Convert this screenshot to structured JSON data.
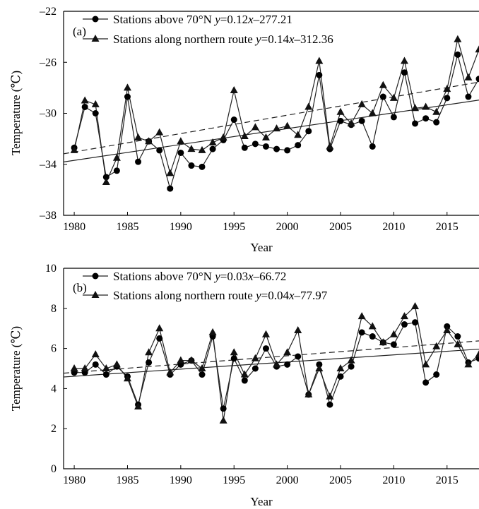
{
  "chart_data": [
    {
      "type": "line",
      "panel_label": "(a)",
      "xlabel": "Year",
      "ylabel": "Temperature (℃)",
      "xlim": [
        1979,
        2018
      ],
      "ylim": [
        -38,
        -22
      ],
      "xticks": [
        1980,
        1985,
        1990,
        1995,
        2000,
        2005,
        2010,
        2015
      ],
      "yticks": [
        -38,
        -34,
        -30,
        -26,
        -22
      ],
      "legend_position": "top-left",
      "x": [
        1980,
        1981,
        1982,
        1983,
        1984,
        1985,
        1986,
        1987,
        1988,
        1989,
        1990,
        1991,
        1992,
        1993,
        1994,
        1995,
        1996,
        1997,
        1998,
        1999,
        2000,
        2001,
        2002,
        2003,
        2004,
        2005,
        2006,
        2007,
        2008,
        2009,
        2010,
        2011,
        2012,
        2013,
        2014,
        2015,
        2016,
        2017,
        2018
      ],
      "series": [
        {
          "name": "Stations above 70°N",
          "equation": "y=0.12x–277.21",
          "marker": "circle",
          "line_style": "solid",
          "values": [
            -32.7,
            -29.5,
            -30.0,
            -35.0,
            -34.5,
            -28.7,
            -33.8,
            -32.2,
            -32.9,
            -35.9,
            -33.1,
            -34.1,
            -34.2,
            -32.8,
            -32.1,
            -30.5,
            -32.7,
            -32.4,
            -32.6,
            -32.8,
            -32.9,
            -32.5,
            -31.4,
            -27.0,
            -32.8,
            -30.6,
            -30.9,
            -30.6,
            -32.6,
            -28.7,
            -30.3,
            -26.8,
            -30.8,
            -30.4,
            -30.7,
            -28.8,
            -25.4,
            -28.7,
            -27.3
          ]
        },
        {
          "name": "Stations along northern route",
          "equation": "y=0.14x–312.36",
          "marker": "triangle",
          "line_style": "dashed",
          "values": [
            -32.9,
            -29.0,
            -29.3,
            -35.4,
            -33.5,
            -28.0,
            -31.9,
            -32.2,
            -31.5,
            -34.7,
            -32.2,
            -32.8,
            -32.9,
            -32.3,
            -31.9,
            -28.2,
            -31.8,
            -31.1,
            -31.9,
            -31.2,
            -31.0,
            -31.7,
            -29.5,
            -25.9,
            -32.6,
            -29.9,
            -30.8,
            -29.3,
            -30.0,
            -27.8,
            -28.8,
            -25.9,
            -29.6,
            -29.5,
            -29.9,
            -28.1,
            -24.2,
            -27.2,
            -25.0
          ]
        }
      ]
    },
    {
      "type": "line",
      "panel_label": "(b)",
      "xlabel": "Year",
      "ylabel": "Temperature (℃)",
      "xlim": [
        1979,
        2018
      ],
      "ylim": [
        0,
        10
      ],
      "xticks": [
        1980,
        1985,
        1990,
        1995,
        2000,
        2005,
        2010,
        2015
      ],
      "yticks": [
        0,
        2,
        4,
        6,
        8,
        10
      ],
      "legend_position": "top-left",
      "x": [
        1980,
        1981,
        1982,
        1983,
        1984,
        1985,
        1986,
        1987,
        1988,
        1989,
        1990,
        1991,
        1992,
        1993,
        1994,
        1995,
        1996,
        1997,
        1998,
        1999,
        2000,
        2001,
        2002,
        2003,
        2004,
        2005,
        2006,
        2007,
        2008,
        2009,
        2010,
        2011,
        2012,
        2013,
        2014,
        2015,
        2016,
        2017,
        2018
      ],
      "series": [
        {
          "name": "Stations above 70°N",
          "equation": "y=0.03x–66.72",
          "marker": "circle",
          "line_style": "solid",
          "values": [
            4.8,
            4.8,
            5.2,
            4.7,
            5.1,
            4.6,
            3.2,
            5.3,
            6.5,
            4.7,
            5.2,
            5.4,
            4.7,
            6.6,
            3.0,
            5.5,
            4.4,
            5.0,
            6.0,
            5.1,
            5.2,
            5.6,
            3.7,
            5.2,
            3.2,
            4.6,
            5.1,
            6.8,
            6.6,
            6.3,
            6.2,
            7.2,
            7.3,
            4.3,
            4.7,
            7.1,
            6.6,
            5.3,
            5.5
          ]
        },
        {
          "name": "Stations along northern route",
          "equation": "y=0.04x–77.97",
          "marker": "triangle",
          "line_style": "dashed",
          "values": [
            5.0,
            5.0,
            5.7,
            5.0,
            5.2,
            4.5,
            3.1,
            5.8,
            7.0,
            4.8,
            5.4,
            5.4,
            5.0,
            6.8,
            2.4,
            5.8,
            4.7,
            5.5,
            6.7,
            5.2,
            5.8,
            6.9,
            3.7,
            5.0,
            3.6,
            5.0,
            5.4,
            7.6,
            7.1,
            6.3,
            6.7,
            7.6,
            8.1,
            5.2,
            6.1,
            6.9,
            6.2,
            5.2,
            5.7
          ]
        }
      ]
    }
  ]
}
